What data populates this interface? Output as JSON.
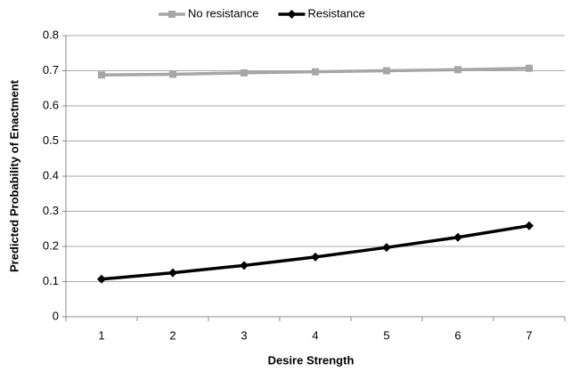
{
  "chart_data": {
    "type": "line",
    "xlabel": "Desire Strength",
    "ylabel": "Predicted Probability of Enactment",
    "categories": [
      "1",
      "2",
      "3",
      "4",
      "5",
      "6",
      "7"
    ],
    "series": [
      {
        "name": "No resistance",
        "color": "#a6a6a6",
        "marker": "square",
        "values": [
          0.688,
          0.69,
          0.694,
          0.697,
          0.7,
          0.703,
          0.707
        ]
      },
      {
        "name": "Resistance",
        "color": "#000000",
        "marker": "diamond",
        "values": [
          0.107,
          0.125,
          0.146,
          0.17,
          0.197,
          0.226,
          0.259
        ]
      }
    ],
    "ylim": [
      0,
      0.8
    ],
    "yticks": [
      0,
      0.1,
      0.2,
      0.3,
      0.4,
      0.5,
      0.6,
      0.7,
      0.8
    ],
    "grid": true,
    "legend": "top"
  }
}
